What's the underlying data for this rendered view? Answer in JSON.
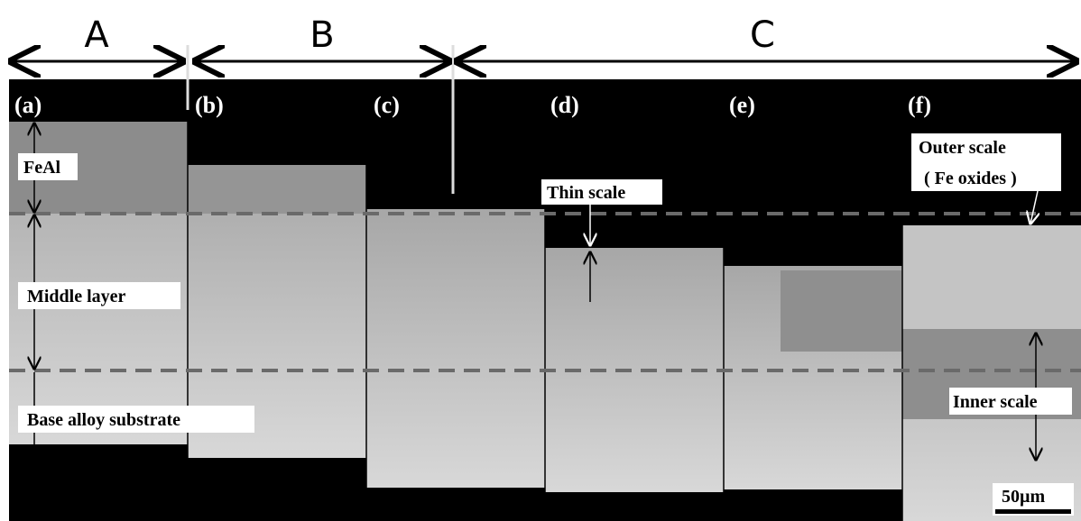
{
  "sections": [
    "A",
    "B",
    "C"
  ],
  "panels": [
    "(a)",
    "(b)",
    "(c)",
    "(d)",
    "(e)",
    "(f)"
  ],
  "annotations": {
    "feal": "FeAl",
    "middle": "Middle layer",
    "base": "Base alloy substrate",
    "thin": "Thin scale",
    "outer": "Outer scale",
    "outer_sub": "( Fe oxides )",
    "inner": "Inner scale",
    "scale_bar": "50µm"
  }
}
